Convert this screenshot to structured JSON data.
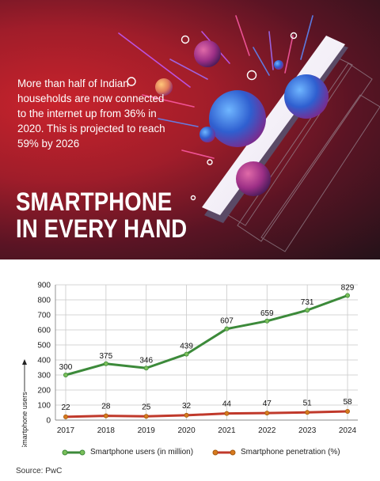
{
  "intro": {
    "text": "More than half of Indian households are now connected to the internet up from 36% in 2020. This is projected to reach 59% by 2026"
  },
  "headline": {
    "line1": "SMARTPHONE",
    "line2": "IN EVERY HAND"
  },
  "colors": {
    "hero_red": "#b3202a",
    "users_line": "#3c8a3a",
    "penetration_line": "#c0392b",
    "marker": "#d87a1e"
  },
  "chart_data": {
    "type": "line",
    "categories": [
      "2017",
      "2018",
      "2019",
      "2020",
      "2021",
      "2022",
      "2023",
      "2024"
    ],
    "series": [
      {
        "name": "Smartphone users (in million)",
        "values": [
          300,
          375,
          346,
          439,
          607,
          659,
          731,
          829
        ]
      },
      {
        "name": "Smartphone penetration (%)",
        "values": [
          22,
          28,
          25,
          32,
          44,
          47,
          51,
          58
        ]
      }
    ],
    "ylabel": "Smartphone users",
    "ylim": [
      0,
      900
    ],
    "yticks": [
      0,
      100,
      200,
      300,
      400,
      500,
      600,
      700,
      800,
      900
    ],
    "grid": true,
    "legend_position": "bottom"
  },
  "source": "Source: PwC"
}
